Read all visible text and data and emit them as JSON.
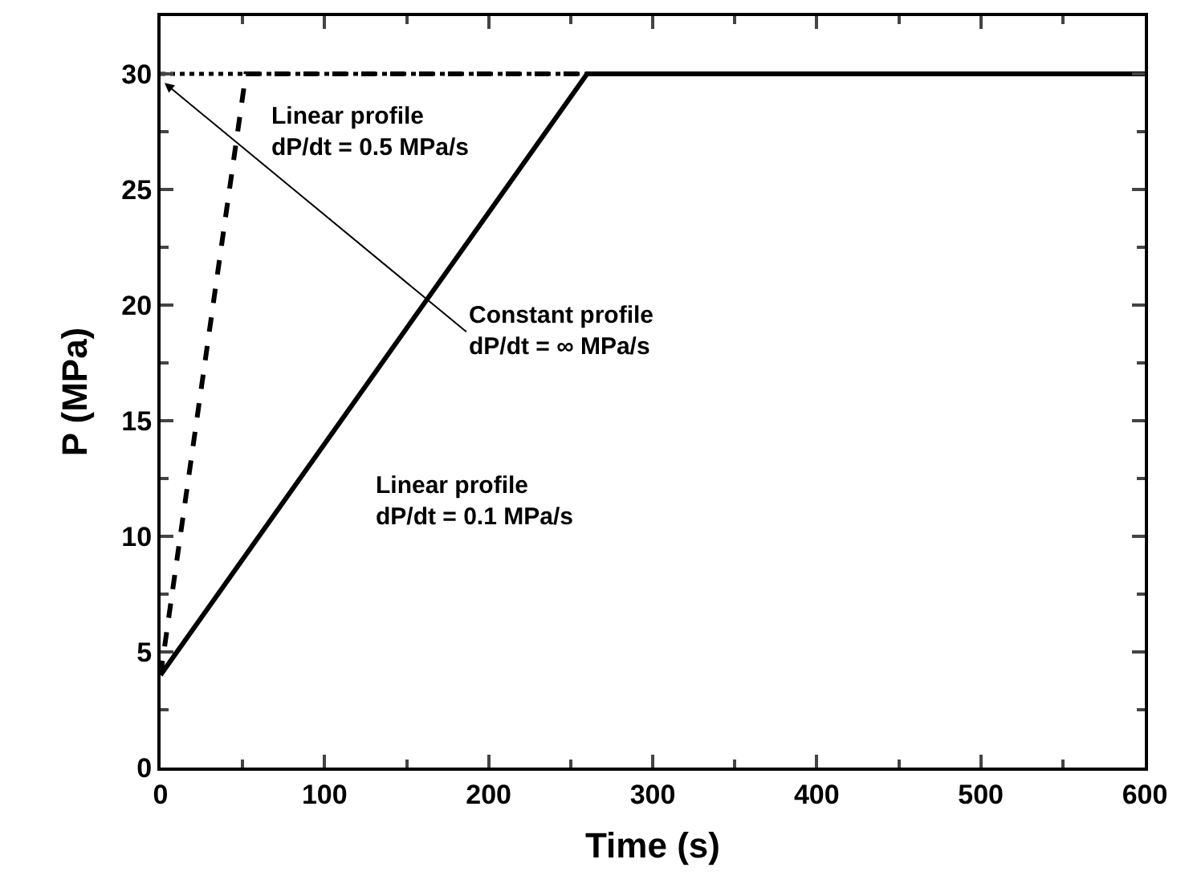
{
  "chart_data": {
    "type": "line",
    "xlabel": "Time (s)",
    "ylabel": "P (MPa)",
    "series": [
      {
        "color": "#000000",
        "line_style": "dotted",
        "x": [
          0,
          600
        ],
        "values": [
          30,
          30
        ]
      },
      {
        "color": "#000000",
        "line_style": "dashed",
        "x": [
          0,
          52,
          600
        ],
        "values": [
          4,
          30,
          30
        ]
      },
      {
        "color": "#000000",
        "line_style": "solid",
        "x": [
          0,
          260,
          600
        ],
        "values": [
          4,
          30,
          30
        ]
      }
    ],
    "xlim": [
      0,
      600
    ],
    "xticks": [
      0,
      100,
      200,
      300,
      400,
      500,
      600
    ],
    "ylim": [
      0,
      32.5
    ],
    "yticks": [
      0,
      5,
      10,
      15,
      20,
      25,
      30
    ],
    "marker": "none",
    "annotations": [
      "Linear profile\ndP/dt = 0.5 MPa/s",
      "Constant profile\ndP/dt = ∞ MPa/s",
      "Linear profile\ndP/dt = 0.1 MPa/s"
    ]
  }
}
